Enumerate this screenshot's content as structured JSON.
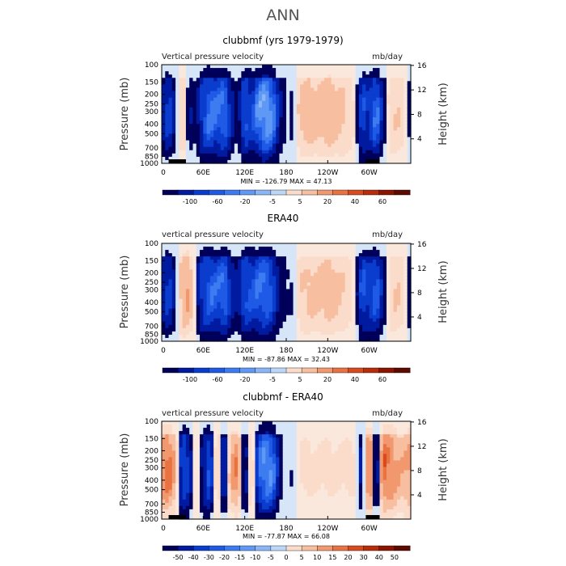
{
  "page_title": "ANN",
  "colors": {
    "blue_scale": [
      "#00005a",
      "#001aa0",
      "#0a3ccd",
      "#1f5ae6",
      "#3c7cf0",
      "#5f98f5",
      "#8ab6f7",
      "#bcd6f8"
    ],
    "red_scale": [
      "#fbdccb",
      "#f7bea0",
      "#f1986f",
      "#e97243",
      "#d84a1e",
      "#b82c0a",
      "#8c1500",
      "#5e0a00"
    ],
    "topography": "#000000"
  },
  "chart_data": [
    {
      "type": "heatmap",
      "title": "clubbmf (yrs 1979-1979)",
      "left_label": "Vertical pressure velocity",
      "right_label": "mb/day",
      "xticks": [
        "0",
        "60E",
        "120E",
        "180",
        "120W",
        "60W"
      ],
      "yticks_left": [
        "100",
        "150",
        "200",
        "250",
        "300",
        "400",
        "500",
        "700",
        "850",
        "1000"
      ],
      "ylabel_left": "Pressure (mb)",
      "yticks_right": [
        "4",
        "8",
        "12",
        "16"
      ],
      "ylabel_right": "Height (km)",
      "stats": "MIN = -126.79   MAX =  47.13",
      "min": -126.79,
      "max": 47.13,
      "colorbar_labels": [
        "-100",
        "-60",
        "-20",
        "-5",
        "5",
        "20",
        "40",
        "60"
      ],
      "field_profile_lon": [
        [
          0,
          -15
        ],
        [
          10,
          -55
        ],
        [
          20,
          -15
        ],
        [
          30,
          25
        ],
        [
          40,
          -20
        ],
        [
          50,
          -10
        ],
        [
          60,
          -60
        ],
        [
          70,
          -85
        ],
        [
          80,
          -70
        ],
        [
          90,
          -80
        ],
        [
          100,
          -35
        ],
        [
          110,
          -5
        ],
        [
          120,
          -70
        ],
        [
          130,
          -45
        ],
        [
          140,
          -95
        ],
        [
          150,
          -120
        ],
        [
          160,
          -95
        ],
        [
          170,
          -25
        ],
        [
          180,
          -5
        ],
        [
          190,
          -10
        ],
        [
          200,
          25
        ],
        [
          210,
          30
        ],
        [
          220,
          28
        ],
        [
          230,
          30
        ],
        [
          240,
          32
        ],
        [
          250,
          30
        ],
        [
          260,
          25
        ],
        [
          270,
          15
        ],
        [
          280,
          5
        ],
        [
          290,
          -60
        ],
        [
          300,
          -35
        ],
        [
          310,
          -85
        ],
        [
          320,
          -20
        ],
        [
          330,
          15
        ],
        [
          340,
          20
        ],
        [
          350,
          12
        ],
        [
          360,
          -15
        ]
      ]
    },
    {
      "type": "heatmap",
      "title": "ERA40",
      "left_label": "vertical pressure velocity",
      "right_label": "mb/day",
      "xticks": [
        "0",
        "60E",
        "120E",
        "180",
        "120W",
        "60W"
      ],
      "yticks_left": [
        "100",
        "150",
        "200",
        "250",
        "300",
        "400",
        "500",
        "700",
        "850",
        "1000"
      ],
      "ylabel_left": "Pressure (mb)",
      "yticks_right": [
        "4",
        "8",
        "12",
        "16"
      ],
      "ylabel_right": "Height (km)",
      "stats": "MIN = -87.86   MAX =  32.43",
      "min": -87.86,
      "max": 32.43,
      "colorbar_labels": [
        "-100",
        "-60",
        "-20",
        "-5",
        "5",
        "20",
        "40",
        "60"
      ],
      "field_profile_lon": [
        [
          0,
          -15
        ],
        [
          10,
          -35
        ],
        [
          20,
          -10
        ],
        [
          30,
          25
        ],
        [
          40,
          30
        ],
        [
          50,
          -10
        ],
        [
          60,
          -40
        ],
        [
          70,
          -50
        ],
        [
          80,
          -45
        ],
        [
          90,
          -55
        ],
        [
          100,
          -25
        ],
        [
          110,
          -15
        ],
        [
          120,
          -45
        ],
        [
          130,
          -40
        ],
        [
          140,
          -50
        ],
        [
          150,
          -55
        ],
        [
          160,
          -40
        ],
        [
          170,
          -12
        ],
        [
          180,
          -5
        ],
        [
          190,
          -5
        ],
        [
          200,
          12
        ],
        [
          210,
          15
        ],
        [
          220,
          18
        ],
        [
          230,
          18
        ],
        [
          240,
          20
        ],
        [
          250,
          18
        ],
        [
          260,
          14
        ],
        [
          270,
          8
        ],
        [
          280,
          0
        ],
        [
          290,
          -45
        ],
        [
          300,
          -30
        ],
        [
          310,
          -50
        ],
        [
          320,
          -15
        ],
        [
          330,
          10
        ],
        [
          340,
          15
        ],
        [
          350,
          8
        ],
        [
          360,
          -15
        ]
      ]
    },
    {
      "type": "heatmap",
      "title": "clubbmf - ERA40",
      "left_label": "vertical pressure velocity",
      "right_label": "mb/day",
      "xticks": [
        "0",
        "60E",
        "120E",
        "180",
        "120W",
        "60W"
      ],
      "yticks_left": [
        "100",
        "150",
        "200",
        "250",
        "300",
        "400",
        "500",
        "700",
        "850",
        "1000"
      ],
      "ylabel_left": "Pressure (mb)",
      "yticks_right": [
        "4",
        "8",
        "12",
        "16"
      ],
      "ylabel_right": "Height (km)",
      "stats": "MIN = -77.87   MAX =  66.08",
      "min": -77.87,
      "max": 66.08,
      "colorbar_labels": [
        "-50",
        "-40",
        "-30",
        "-20",
        "-15",
        "-10",
        "-5",
        "0",
        "5",
        "10",
        "15",
        "20",
        "30",
        "40",
        "50"
      ],
      "field_profile_lon": [
        [
          0,
          30
        ],
        [
          10,
          45
        ],
        [
          20,
          20
        ],
        [
          30,
          -40
        ],
        [
          40,
          -25
        ],
        [
          50,
          10
        ],
        [
          60,
          -20
        ],
        [
          70,
          -40
        ],
        [
          80,
          20
        ],
        [
          90,
          -30
        ],
        [
          100,
          25
        ],
        [
          110,
          35
        ],
        [
          120,
          -25
        ],
        [
          130,
          20
        ],
        [
          140,
          -45
        ],
        [
          150,
          -65
        ],
        [
          160,
          -55
        ],
        [
          170,
          -10
        ],
        [
          180,
          0
        ],
        [
          190,
          -5
        ],
        [
          200,
          5
        ],
        [
          210,
          5
        ],
        [
          220,
          5
        ],
        [
          230,
          5
        ],
        [
          240,
          5
        ],
        [
          250,
          5
        ],
        [
          260,
          5
        ],
        [
          270,
          5
        ],
        [
          280,
          5
        ],
        [
          290,
          -20
        ],
        [
          300,
          50
        ],
        [
          310,
          -30
        ],
        [
          320,
          45
        ],
        [
          330,
          35
        ],
        [
          340,
          25
        ],
        [
          350,
          20
        ],
        [
          360,
          30
        ]
      ]
    }
  ]
}
